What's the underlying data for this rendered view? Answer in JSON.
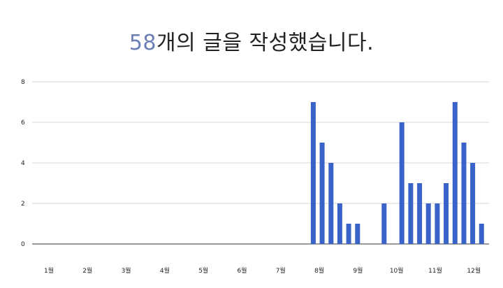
{
  "headline": {
    "count": "58",
    "text": "개의 글을 작성했습니다."
  },
  "chart_data": {
    "type": "bar",
    "ylim": [
      0,
      8
    ],
    "yticks": [
      0,
      2,
      4,
      6,
      8
    ],
    "grid": true,
    "bar_color": "#3a63c9",
    "month_labels": [
      "1월",
      "2월",
      "3월",
      "4월",
      "5월",
      "6월",
      "7월",
      "8월",
      "9월",
      "10월",
      "11월",
      "12월"
    ],
    "x_unit": "week index within year",
    "x_range": [
      1,
      52
    ],
    "points": [
      {
        "x": 31,
        "y": 7
      },
      {
        "x": 32,
        "y": 5
      },
      {
        "x": 33,
        "y": 4
      },
      {
        "x": 34,
        "y": 2
      },
      {
        "x": 35,
        "y": 1
      },
      {
        "x": 36,
        "y": 1
      },
      {
        "x": 39,
        "y": 2
      },
      {
        "x": 41,
        "y": 6
      },
      {
        "x": 42,
        "y": 3
      },
      {
        "x": 43,
        "y": 3
      },
      {
        "x": 44,
        "y": 2
      },
      {
        "x": 45,
        "y": 2
      },
      {
        "x": 46,
        "y": 3
      },
      {
        "x": 47,
        "y": 7
      },
      {
        "x": 48,
        "y": 5
      },
      {
        "x": 49,
        "y": 4
      },
      {
        "x": 50,
        "y": 1
      }
    ]
  }
}
